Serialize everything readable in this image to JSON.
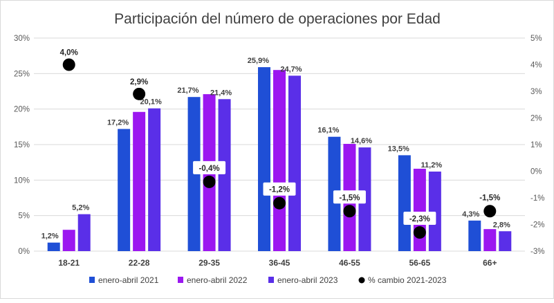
{
  "chart_data": {
    "type": "bar",
    "title": "Participación del número de operaciones por Edad",
    "categories": [
      "18-21",
      "22-28",
      "29-35",
      "36-45",
      "46-55",
      "56-65",
      "66+"
    ],
    "series": [
      {
        "name": "enero-abril 2021",
        "color": "#1f4fd6",
        "values": [
          1.2,
          17.2,
          21.7,
          25.9,
          16.1,
          13.5,
          4.3
        ],
        "labels": [
          "1,2%",
          "17,2%",
          "21,7%",
          "25,9%",
          "16,1%",
          "13,5%",
          "4,3%"
        ]
      },
      {
        "name": "enero-abril 2022",
        "color": "#9b17f0",
        "values": [
          3.0,
          19.6,
          22.1,
          25.5,
          15.1,
          11.6,
          3.1
        ],
        "labels": [
          "",
          "",
          "",
          "",
          "",
          "",
          ""
        ]
      },
      {
        "name": "enero-abril 2023",
        "color": "#5a2fe8",
        "values": [
          5.2,
          20.1,
          21.4,
          24.7,
          14.6,
          11.2,
          2.8
        ],
        "labels": [
          "5,2%",
          "20,1%",
          "21,4%",
          "24,7%",
          "14,6%",
          "11,2%",
          "2,8%"
        ]
      }
    ],
    "line_series": {
      "name": "% cambio 2021-2023",
      "color": "#000000",
      "axis": "right",
      "values": [
        4.0,
        2.9,
        -0.4,
        -1.2,
        -1.5,
        -2.3,
        -1.5
      ],
      "labels": [
        "4,0%",
        "2,9%",
        "-0,4%",
        "-1,2%",
        "-1,5%",
        "-2,3%",
        "-1,5%"
      ]
    },
    "y_left": {
      "min": 0,
      "max": 30,
      "ticks": [
        "0%",
        "5%",
        "10%",
        "15%",
        "20%",
        "25%",
        "30%"
      ]
    },
    "y_right": {
      "min": -3,
      "max": 5,
      "ticks": [
        "-3%",
        "-2%",
        "-1%",
        "0%",
        "1%",
        "2%",
        "3%",
        "4%",
        "5%"
      ]
    },
    "legend_position": "bottom",
    "grid": true
  }
}
